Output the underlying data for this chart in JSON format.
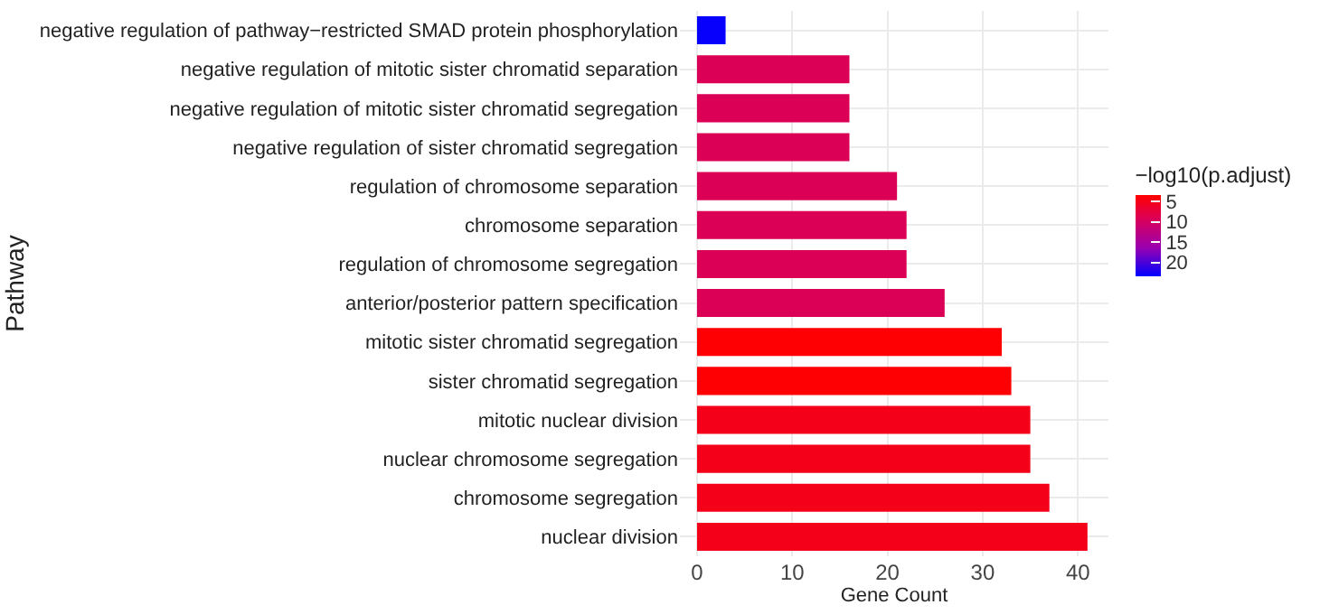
{
  "chart_data": {
    "type": "bar",
    "orientation": "horizontal",
    "xlabel": "Gene Count",
    "ylabel": "Pathway",
    "clabel": "−log10(p.adjust)",
    "categories": [
      "negative regulation of pathway−restricted SMAD protein phosphorylation",
      "negative regulation of mitotic sister chromatid separation",
      "negative regulation of mitotic sister chromatid segregation",
      "negative regulation of sister chromatid segregation",
      "regulation of chromosome separation",
      "chromosome separation",
      "regulation of chromosome segregation",
      "anterior/posterior pattern specification",
      "mitotic sister chromatid segregation",
      "sister chromatid segregation",
      "mitotic nuclear division",
      "nuclear chromosome segregation",
      "chromosome segregation",
      "nuclear division"
    ],
    "values": [
      3,
      16,
      16,
      16,
      21,
      22,
      22,
      26,
      32,
      33,
      35,
      35,
      37,
      41
    ],
    "cvalues": [
      23,
      9,
      9,
      9,
      9,
      9,
      9,
      9,
      3.5,
      3.5,
      5,
      5,
      5,
      5
    ],
    "clim": [
      3.3,
      23.3
    ],
    "cticks": [
      5,
      10,
      15,
      20
    ],
    "xlim": [
      -1.8,
      43.2
    ],
    "xticks": [
      0,
      10,
      20,
      30,
      40
    ],
    "grid": true
  }
}
